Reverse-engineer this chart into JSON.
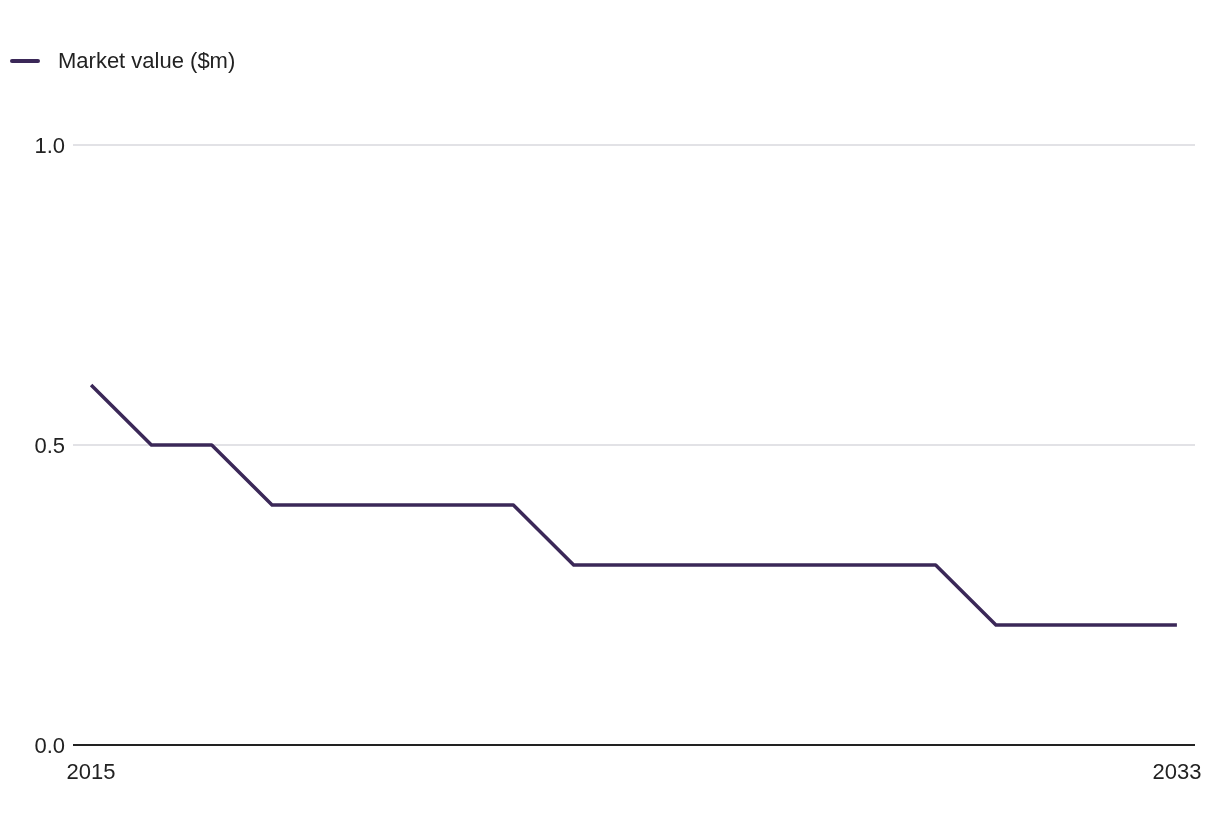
{
  "chart_data": {
    "type": "line",
    "x": [
      2015,
      2016,
      2017,
      2018,
      2019,
      2020,
      2021,
      2022,
      2023,
      2024,
      2025,
      2026,
      2027,
      2028,
      2029,
      2030,
      2031,
      2032,
      2033
    ],
    "series": [
      {
        "name": "Market value ($m)",
        "color": "#3b2858",
        "values": [
          0.6,
          0.5,
          0.5,
          0.4,
          0.4,
          0.4,
          0.4,
          0.4,
          0.3,
          0.3,
          0.3,
          0.3,
          0.3,
          0.3,
          0.3,
          0.2,
          0.2,
          0.2,
          0.2
        ]
      }
    ],
    "xlim": [
      2014.7,
      2033.3
    ],
    "xticks": [
      2015,
      2033
    ],
    "ylim": [
      0,
      1
    ],
    "yticks": [
      {
        "value": 0,
        "label": "0.0"
      },
      {
        "value": 0.5,
        "label": "0.5"
      },
      {
        "value": 1,
        "label": "1.0"
      }
    ],
    "grid": "y",
    "legend": "top left"
  }
}
